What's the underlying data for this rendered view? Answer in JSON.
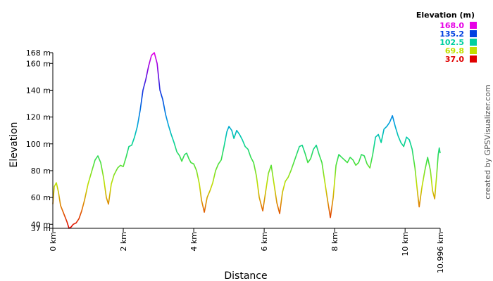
{
  "chart_data": {
    "type": "line",
    "xlabel": "Distance",
    "ylabel": "Elevation",
    "xlim": [
      0,
      10.996
    ],
    "ylim": [
      37,
      168
    ],
    "grid": false,
    "x_tick_labels": [
      "0 km",
      "2 km",
      "4 km",
      "6 km",
      "8 km",
      "10 km",
      "10.996 km"
    ],
    "x_tick_values": [
      0,
      2,
      4,
      6,
      8,
      10,
      10.996
    ],
    "y_tick_labels": [
      "37 m",
      "40 m",
      "60 m",
      "80 m",
      "100 m",
      "120 m",
      "140 m",
      "160 m",
      "168 m"
    ],
    "y_tick_values": [
      37,
      40,
      60,
      80,
      100,
      120,
      140,
      160,
      168
    ],
    "legend": {
      "title": "Elevation (m)",
      "placement": "top-right",
      "entries": [
        {
          "label": "168.0",
          "color": "#e600e6"
        },
        {
          "label": "135.2",
          "color": "#0040e0"
        },
        {
          "label": "102.5",
          "color": "#00d0a0"
        },
        {
          "label": "69.8",
          "color": "#c0e000"
        },
        {
          "label": "37.0",
          "color": "#e00000"
        }
      ]
    },
    "series": [
      {
        "color_scale": "elevation",
        "points": [
          [
            0.0,
            55
          ],
          [
            0.04,
            68
          ],
          [
            0.1,
            71
          ],
          [
            0.16,
            64
          ],
          [
            0.22,
            54
          ],
          [
            0.28,
            50
          ],
          [
            0.34,
            46
          ],
          [
            0.4,
            42
          ],
          [
            0.46,
            37
          ],
          [
            0.52,
            38
          ],
          [
            0.58,
            40
          ],
          [
            0.66,
            41
          ],
          [
            0.74,
            44
          ],
          [
            0.82,
            50
          ],
          [
            0.9,
            58
          ],
          [
            1.0,
            70
          ],
          [
            1.1,
            79
          ],
          [
            1.2,
            88
          ],
          [
            1.28,
            91
          ],
          [
            1.36,
            86
          ],
          [
            1.44,
            75
          ],
          [
            1.52,
            60
          ],
          [
            1.58,
            55
          ],
          [
            1.66,
            70
          ],
          [
            1.74,
            77
          ],
          [
            1.84,
            82
          ],
          [
            1.92,
            84
          ],
          [
            2.0,
            83
          ],
          [
            2.08,
            90
          ],
          [
            2.16,
            98
          ],
          [
            2.24,
            99
          ],
          [
            2.32,
            105
          ],
          [
            2.4,
            113
          ],
          [
            2.48,
            125
          ],
          [
            2.56,
            140
          ],
          [
            2.64,
            148
          ],
          [
            2.72,
            158
          ],
          [
            2.8,
            166
          ],
          [
            2.88,
            168
          ],
          [
            2.96,
            160
          ],
          [
            3.04,
            140
          ],
          [
            3.12,
            133
          ],
          [
            3.2,
            122
          ],
          [
            3.28,
            114
          ],
          [
            3.36,
            107
          ],
          [
            3.44,
            101
          ],
          [
            3.52,
            94
          ],
          [
            3.6,
            91
          ],
          [
            3.66,
            87
          ],
          [
            3.74,
            92
          ],
          [
            3.8,
            93
          ],
          [
            3.86,
            89
          ],
          [
            3.92,
            86
          ],
          [
            4.0,
            85
          ],
          [
            4.08,
            80
          ],
          [
            4.16,
            70
          ],
          [
            4.22,
            58
          ],
          [
            4.3,
            49
          ],
          [
            4.38,
            60
          ],
          [
            4.46,
            65
          ],
          [
            4.54,
            71
          ],
          [
            4.62,
            80
          ],
          [
            4.7,
            85
          ],
          [
            4.78,
            88
          ],
          [
            4.86,
            98
          ],
          [
            4.94,
            109
          ],
          [
            5.0,
            113
          ],
          [
            5.08,
            110
          ],
          [
            5.14,
            104
          ],
          [
            5.22,
            110
          ],
          [
            5.3,
            107
          ],
          [
            5.38,
            103
          ],
          [
            5.46,
            98
          ],
          [
            5.54,
            96
          ],
          [
            5.62,
            90
          ],
          [
            5.7,
            86
          ],
          [
            5.78,
            76
          ],
          [
            5.86,
            60
          ],
          [
            5.96,
            50
          ],
          [
            6.04,
            64
          ],
          [
            6.12,
            78
          ],
          [
            6.2,
            84
          ],
          [
            6.28,
            70
          ],
          [
            6.36,
            56
          ],
          [
            6.44,
            48
          ],
          [
            6.52,
            64
          ],
          [
            6.6,
            72
          ],
          [
            6.68,
            75
          ],
          [
            6.76,
            80
          ],
          [
            6.84,
            86
          ],
          [
            6.92,
            92
          ],
          [
            7.0,
            98
          ],
          [
            7.08,
            99
          ],
          [
            7.16,
            93
          ],
          [
            7.24,
            86
          ],
          [
            7.32,
            89
          ],
          [
            7.4,
            96
          ],
          [
            7.48,
            99
          ],
          [
            7.56,
            92
          ],
          [
            7.64,
            86
          ],
          [
            7.72,
            72
          ],
          [
            7.8,
            58
          ],
          [
            7.88,
            45
          ],
          [
            7.96,
            60
          ],
          [
            8.04,
            84
          ],
          [
            8.12,
            92
          ],
          [
            8.2,
            90
          ],
          [
            8.28,
            88
          ],
          [
            8.36,
            86
          ],
          [
            8.44,
            90
          ],
          [
            8.52,
            88
          ],
          [
            8.6,
            84
          ],
          [
            8.68,
            86
          ],
          [
            8.76,
            92
          ],
          [
            8.84,
            91
          ],
          [
            8.92,
            85
          ],
          [
            9.0,
            82
          ],
          [
            9.08,
            92
          ],
          [
            9.16,
            105
          ],
          [
            9.24,
            107
          ],
          [
            9.32,
            101
          ],
          [
            9.4,
            111
          ],
          [
            9.48,
            113
          ],
          [
            9.56,
            116
          ],
          [
            9.64,
            121
          ],
          [
            9.72,
            113
          ],
          [
            9.8,
            106
          ],
          [
            9.88,
            101
          ],
          [
            9.96,
            98
          ],
          [
            10.04,
            105
          ],
          [
            10.12,
            103
          ],
          [
            10.2,
            96
          ],
          [
            10.28,
            82
          ],
          [
            10.36,
            62
          ],
          [
            10.4,
            53
          ],
          [
            10.48,
            68
          ],
          [
            10.56,
            80
          ],
          [
            10.64,
            90
          ],
          [
            10.72,
            80
          ],
          [
            10.78,
            65
          ],
          [
            10.84,
            59
          ],
          [
            10.9,
            78
          ],
          [
            10.94,
            92
          ],
          [
            10.97,
            97
          ],
          [
            10.996,
            93
          ]
        ]
      }
    ]
  },
  "credit_text": "created by GPSVisualizer.com"
}
